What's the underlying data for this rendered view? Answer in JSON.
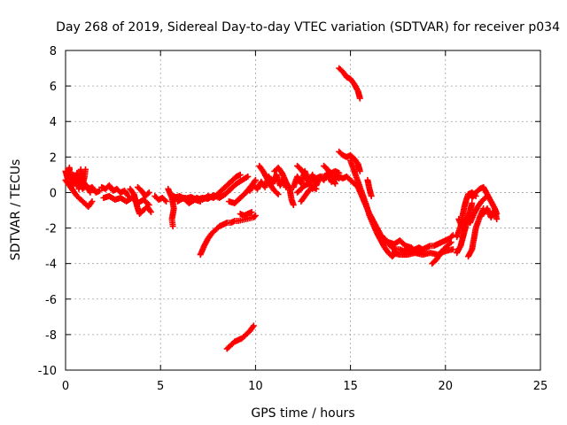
{
  "chart_data": {
    "type": "scatter",
    "title": "Day 268 of 2019, Sidereal Day-to-day VTEC variation (SDTVAR) for receiver p034",
    "xlabel": "GPS time / hours",
    "ylabel": "SDTVAR / TECUs",
    "xlim": [
      0,
      25
    ],
    "ylim": [
      -10,
      8
    ],
    "xticks": [
      0,
      5,
      10,
      15,
      20,
      25
    ],
    "yticks": [
      -10,
      -8,
      -6,
      -4,
      -2,
      0,
      2,
      4,
      6,
      8
    ],
    "grid": true,
    "marker": "plus",
    "color": "#ff0000",
    "segments": [
      [
        [
          0.0,
          1.2
        ],
        [
          0.1,
          0.8
        ],
        [
          0.2,
          1.4
        ],
        [
          0.3,
          0.3
        ],
        [
          0.4,
          1.0
        ],
        [
          0.5,
          0.6
        ],
        [
          0.6,
          1.1
        ],
        [
          0.7,
          0.2
        ],
        [
          0.8,
          1.3
        ],
        [
          0.9,
          0.4
        ],
        [
          1.0,
          0.9
        ],
        [
          1.05,
          1.3
        ]
      ],
      [
        [
          0.0,
          0.7
        ],
        [
          0.2,
          0.4
        ],
        [
          0.4,
          0.1
        ],
        [
          0.6,
          -0.2
        ],
        [
          0.8,
          -0.4
        ],
        [
          1.0,
          -0.6
        ],
        [
          1.2,
          -0.8
        ],
        [
          1.4,
          -0.5
        ]
      ],
      [
        [
          0.3,
          0.9
        ],
        [
          0.5,
          0.5
        ],
        [
          0.7,
          0.7
        ],
        [
          0.9,
          0.2
        ],
        [
          1.1,
          0.4
        ],
        [
          1.3,
          0.0
        ]
      ],
      [
        [
          1.0,
          0.5
        ],
        [
          1.2,
          0.2
        ],
        [
          1.4,
          0.3
        ],
        [
          1.6,
          0.0
        ],
        [
          1.8,
          0.1
        ]
      ],
      [
        [
          1.9,
          0.3
        ],
        [
          2.1,
          0.2
        ],
        [
          2.3,
          0.4
        ],
        [
          2.5,
          0.1
        ],
        [
          2.7,
          0.2
        ],
        [
          2.9,
          0.0
        ],
        [
          3.1,
          0.1
        ],
        [
          3.3,
          -0.2
        ]
      ],
      [
        [
          2.0,
          -0.3
        ],
        [
          2.3,
          -0.2
        ],
        [
          2.6,
          -0.4
        ],
        [
          2.9,
          -0.3
        ],
        [
          3.2,
          -0.5
        ],
        [
          3.5,
          -0.3
        ],
        [
          3.8,
          -0.6
        ],
        [
          4.1,
          -0.4
        ],
        [
          4.4,
          -0.7
        ]
      ],
      [
        [
          3.4,
          0.2
        ],
        [
          3.6,
          -0.1
        ],
        [
          3.7,
          -0.5
        ],
        [
          3.8,
          -0.9
        ],
        [
          3.9,
          -1.2
        ],
        [
          4.1,
          -1.0
        ],
        [
          4.3,
          -0.8
        ],
        [
          4.5,
          -1.1
        ]
      ],
      [
        [
          3.8,
          0.3
        ],
        [
          4.0,
          0.1
        ],
        [
          4.2,
          -0.2
        ],
        [
          4.4,
          0.0
        ]
      ],
      [
        [
          4.7,
          -0.2
        ],
        [
          4.9,
          -0.4
        ],
        [
          5.1,
          -0.3
        ],
        [
          5.3,
          -0.5
        ]
      ],
      [
        [
          5.4,
          0.2
        ],
        [
          5.6,
          -0.3
        ],
        [
          5.7,
          -0.9
        ],
        [
          5.6,
          -1.5
        ],
        [
          5.65,
          -1.9
        ]
      ],
      [
        [
          5.7,
          -0.2
        ],
        [
          6.0,
          -0.4
        ],
        [
          6.3,
          -0.3
        ],
        [
          6.6,
          -0.5
        ],
        [
          6.9,
          -0.3
        ],
        [
          7.2,
          -0.4
        ],
        [
          7.5,
          -0.2
        ],
        [
          7.8,
          -0.3
        ],
        [
          8.1,
          0.0
        ],
        [
          8.4,
          0.3
        ],
        [
          8.7,
          0.6
        ],
        [
          9.0,
          0.9
        ],
        [
          9.2,
          1.0
        ]
      ],
      [
        [
          5.7,
          -0.3
        ],
        [
          6.0,
          -0.2
        ],
        [
          6.3,
          -0.35
        ],
        [
          6.6,
          -0.25
        ],
        [
          6.9,
          -0.4
        ],
        [
          7.2,
          -0.3
        ],
        [
          7.5,
          -0.35
        ],
        [
          7.8,
          -0.15
        ],
        [
          8.1,
          -0.3
        ],
        [
          8.4,
          -0.1
        ],
        [
          8.7,
          0.2
        ],
        [
          9.0,
          0.5
        ],
        [
          9.3,
          0.7
        ],
        [
          9.6,
          0.9
        ]
      ],
      [
        [
          5.9,
          -0.5
        ],
        [
          6.2,
          -0.3
        ],
        [
          6.5,
          -0.6
        ],
        [
          6.8,
          -0.4
        ],
        [
          7.1,
          -0.5
        ]
      ],
      [
        [
          8.6,
          -0.5
        ],
        [
          8.9,
          -0.6
        ],
        [
          9.2,
          -0.3
        ],
        [
          9.5,
          0.0
        ],
        [
          9.8,
          0.4
        ],
        [
          10.0,
          0.7
        ]
      ],
      [
        [
          7.1,
          -3.5
        ],
        [
          7.3,
          -3.0
        ],
        [
          7.5,
          -2.6
        ],
        [
          7.7,
          -2.3
        ],
        [
          7.9,
          -2.1
        ],
        [
          8.1,
          -1.9
        ],
        [
          8.3,
          -1.8
        ],
        [
          8.5,
          -1.7
        ],
        [
          8.7,
          -1.7
        ],
        [
          8.9,
          -1.6
        ],
        [
          9.1,
          -1.6
        ],
        [
          9.3,
          -1.55
        ],
        [
          9.5,
          -1.5
        ],
        [
          9.7,
          -1.45
        ],
        [
          9.9,
          -1.4
        ],
        [
          10.0,
          -1.3
        ]
      ],
      [
        [
          9.2,
          -1.2
        ],
        [
          9.4,
          -1.3
        ],
        [
          9.6,
          -1.2
        ],
        [
          9.8,
          -1.1
        ]
      ],
      [
        [
          8.5,
          -8.8
        ],
        [
          8.7,
          -8.6
        ],
        [
          8.9,
          -8.4
        ],
        [
          9.1,
          -8.3
        ],
        [
          9.3,
          -8.2
        ],
        [
          9.5,
          -8.0
        ],
        [
          9.7,
          -7.8
        ],
        [
          9.9,
          -7.5
        ]
      ],
      [
        [
          9.7,
          0.1
        ],
        [
          9.9,
          0.4
        ],
        [
          10.1,
          0.2
        ],
        [
          10.3,
          0.6
        ],
        [
          10.5,
          0.3
        ],
        [
          10.7,
          0.9
        ],
        [
          10.9,
          0.5
        ],
        [
          11.1,
          1.0
        ],
        [
          11.3,
          0.4
        ],
        [
          11.5,
          0.8
        ],
        [
          11.6,
          0.3
        ]
      ],
      [
        [
          10.2,
          1.5
        ],
        [
          10.4,
          1.2
        ],
        [
          10.6,
          0.8
        ],
        [
          10.8,
          0.4
        ],
        [
          11.0,
          0.1
        ],
        [
          11.2,
          -0.1
        ]
      ],
      [
        [
          11.0,
          1.2
        ],
        [
          11.2,
          1.4
        ],
        [
          11.4,
          1.1
        ],
        [
          11.6,
          0.6
        ],
        [
          11.8,
          0.2
        ],
        [
          11.9,
          -0.4
        ],
        [
          12.0,
          -0.7
        ]
      ],
      [
        [
          12.0,
          0.3
        ],
        [
          12.2,
          0.9
        ],
        [
          12.4,
          0.5
        ],
        [
          12.6,
          1.2
        ],
        [
          12.8,
          0.6
        ],
        [
          13.0,
          1.0
        ],
        [
          13.2,
          0.4
        ],
        [
          13.4,
          0.9
        ],
        [
          13.6,
          0.7
        ],
        [
          13.8,
          1.1
        ],
        [
          14.0,
          0.6
        ],
        [
          14.2,
          0.9
        ],
        [
          14.4,
          0.8
        ]
      ],
      [
        [
          12.2,
          0.0
        ],
        [
          12.4,
          0.2
        ],
        [
          12.6,
          0.4
        ],
        [
          12.8,
          0.5
        ],
        [
          13.0,
          0.7
        ],
        [
          13.2,
          0.8
        ],
        [
          13.4,
          0.9
        ],
        [
          13.6,
          0.9
        ],
        [
          13.8,
          1.0
        ],
        [
          14.0,
          1.1
        ],
        [
          14.2,
          1.2
        ],
        [
          14.4,
          1.1
        ]
      ],
      [
        [
          12.4,
          -0.5
        ],
        [
          12.6,
          -0.2
        ],
        [
          12.8,
          0.1
        ],
        [
          13.0,
          0.3
        ],
        [
          13.2,
          0.2
        ]
      ],
      [
        [
          12.2,
          1.5
        ],
        [
          12.4,
          1.3
        ],
        [
          12.6,
          1.0
        ],
        [
          12.8,
          0.6
        ],
        [
          13.0,
          0.2
        ]
      ],
      [
        [
          13.6,
          1.5
        ],
        [
          13.8,
          1.3
        ],
        [
          14.0,
          0.9
        ],
        [
          14.2,
          0.5
        ]
      ],
      [
        [
          14.4,
          2.3
        ],
        [
          14.6,
          2.1
        ],
        [
          14.8,
          2.0
        ],
        [
          15.0,
          2.1
        ],
        [
          15.2,
          1.9
        ],
        [
          15.4,
          1.6
        ],
        [
          15.5,
          1.2
        ]
      ],
      [
        [
          14.4,
          0.9
        ],
        [
          14.6,
          0.8
        ],
        [
          14.8,
          0.9
        ],
        [
          15.0,
          0.7
        ],
        [
          15.2,
          0.5
        ],
        [
          15.4,
          0.3
        ],
        [
          15.6,
          -0.2
        ],
        [
          15.8,
          -0.7
        ],
        [
          16.0,
          -1.2
        ],
        [
          16.2,
          -1.6
        ],
        [
          16.4,
          -2.0
        ],
        [
          16.6,
          -2.4
        ],
        [
          16.8,
          -2.6
        ],
        [
          17.0,
          -2.9
        ],
        [
          17.2,
          -3.1
        ],
        [
          17.4,
          -3.2
        ],
        [
          17.6,
          -3.2
        ],
        [
          17.8,
          -3.3
        ],
        [
          18.0,
          -3.2
        ],
        [
          18.2,
          -3.3
        ],
        [
          18.4,
          -3.2
        ],
        [
          18.6,
          -3.1
        ],
        [
          18.8,
          -3.2
        ],
        [
          19.0,
          -3.1
        ],
        [
          19.2,
          -3.0
        ],
        [
          19.4,
          -3.0
        ],
        [
          19.6,
          -2.9
        ],
        [
          19.8,
          -2.8
        ],
        [
          20.0,
          -2.7
        ],
        [
          20.2,
          -2.6
        ],
        [
          20.4,
          -2.4
        ]
      ],
      [
        [
          15.0,
          1.8
        ],
        [
          15.2,
          1.2
        ],
        [
          15.4,
          0.6
        ],
        [
          15.6,
          0.0
        ],
        [
          15.8,
          -0.6
        ],
        [
          16.0,
          -1.3
        ],
        [
          16.2,
          -1.8
        ],
        [
          16.4,
          -2.3
        ],
        [
          16.6,
          -2.7
        ],
        [
          16.8,
          -3.1
        ],
        [
          17.0,
          -3.4
        ],
        [
          17.2,
          -3.6
        ],
        [
          17.4,
          -3.4
        ]
      ],
      [
        [
          15.9,
          0.7
        ],
        [
          16.0,
          0.2
        ],
        [
          16.1,
          -0.2
        ]
      ],
      [
        [
          17.0,
          -2.8
        ],
        [
          17.3,
          -2.9
        ],
        [
          17.6,
          -2.7
        ],
        [
          17.9,
          -3.0
        ],
        [
          18.2,
          -3.1
        ],
        [
          18.5,
          -3.4
        ],
        [
          18.8,
          -3.3
        ]
      ],
      [
        [
          17.2,
          -3.4
        ],
        [
          17.6,
          -3.5
        ],
        [
          18.0,
          -3.5
        ],
        [
          18.4,
          -3.4
        ],
        [
          18.8,
          -3.5
        ],
        [
          19.2,
          -3.4
        ],
        [
          19.6,
          -3.5
        ],
        [
          20.0,
          -3.3
        ],
        [
          20.4,
          -3.2
        ]
      ],
      [
        [
          19.3,
          -4.0
        ],
        [
          19.5,
          -3.8
        ],
        [
          19.7,
          -3.5
        ],
        [
          19.9,
          -3.2
        ],
        [
          20.1,
          -3.0
        ],
        [
          20.3,
          -2.8
        ]
      ],
      [
        [
          20.6,
          -3.4
        ],
        [
          20.8,
          -3.0
        ],
        [
          20.9,
          -2.6
        ],
        [
          21.0,
          -2.2
        ],
        [
          21.1,
          -1.8
        ],
        [
          21.2,
          -1.4
        ],
        [
          21.3,
          -1.0
        ],
        [
          21.4,
          -0.6
        ]
      ],
      [
        [
          20.6,
          -2.5
        ],
        [
          20.8,
          -1.9
        ],
        [
          20.9,
          -1.3
        ],
        [
          21.0,
          -0.8
        ],
        [
          21.1,
          -0.4
        ],
        [
          21.2,
          -0.1
        ],
        [
          21.4,
          0.0
        ],
        [
          21.6,
          -0.2
        ]
      ],
      [
        [
          20.7,
          -1.5
        ],
        [
          20.9,
          -2.0
        ],
        [
          21.1,
          -1.4
        ],
        [
          21.3,
          -1.7
        ],
        [
          21.5,
          -1.2
        ],
        [
          21.7,
          -0.8
        ],
        [
          21.9,
          -0.5
        ],
        [
          22.1,
          -0.3
        ]
      ],
      [
        [
          21.2,
          -3.6
        ],
        [
          21.4,
          -3.2
        ],
        [
          21.5,
          -2.6
        ],
        [
          21.6,
          -2.0
        ],
        [
          21.8,
          -1.4
        ],
        [
          22.0,
          -0.9
        ]
      ],
      [
        [
          21.4,
          -0.3
        ],
        [
          21.6,
          0.0
        ],
        [
          21.8,
          0.2
        ],
        [
          22.0,
          0.3
        ],
        [
          22.2,
          -0.1
        ],
        [
          22.4,
          -0.5
        ],
        [
          22.6,
          -0.9
        ],
        [
          22.7,
          -1.2
        ]
      ],
      [
        [
          22.0,
          -1.2
        ],
        [
          22.2,
          -0.9
        ],
        [
          22.4,
          -1.4
        ],
        [
          22.6,
          -1.0
        ],
        [
          22.7,
          -1.5
        ]
      ],
      [
        [
          14.4,
          7.0
        ],
        [
          14.6,
          6.8
        ],
        [
          14.8,
          6.5
        ],
        [
          15.0,
          6.4
        ],
        [
          15.2,
          6.1
        ],
        [
          15.4,
          5.7
        ],
        [
          15.5,
          5.3
        ]
      ]
    ]
  }
}
